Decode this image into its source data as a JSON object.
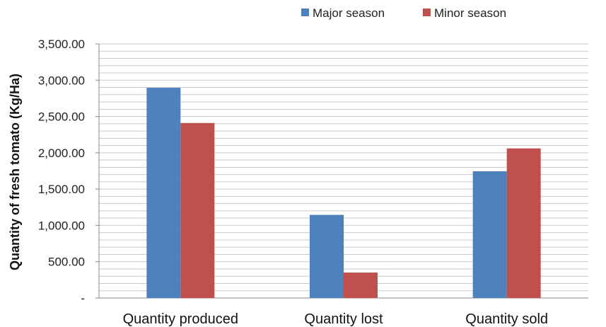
{
  "chart_data": {
    "type": "bar",
    "title": "",
    "xlabel": "",
    "ylabel": "Quantity of fresh tomato (Kg/Ha)",
    "categories": [
      "Quantity produced",
      "Quantity lost",
      "Quantity sold"
    ],
    "series": [
      {
        "name": "Major season",
        "color": "#4F81BD",
        "values": [
          2895,
          1145,
          1745
        ]
      },
      {
        "name": "Minor season",
        "color": "#C0504D",
        "values": [
          2410,
          350,
          2060
        ]
      }
    ],
    "ylim": [
      0,
      3500
    ],
    "yticks": [
      0,
      500,
      1000,
      1500,
      2000,
      2500,
      3000,
      3500
    ],
    "ytick_labels": [
      "-",
      "500.00",
      "1,000.00",
      "1,500.00",
      "2,000.00",
      "2,500.00",
      "3,000.00",
      "3,500.00"
    ],
    "grid": true,
    "legend_position": "top"
  }
}
